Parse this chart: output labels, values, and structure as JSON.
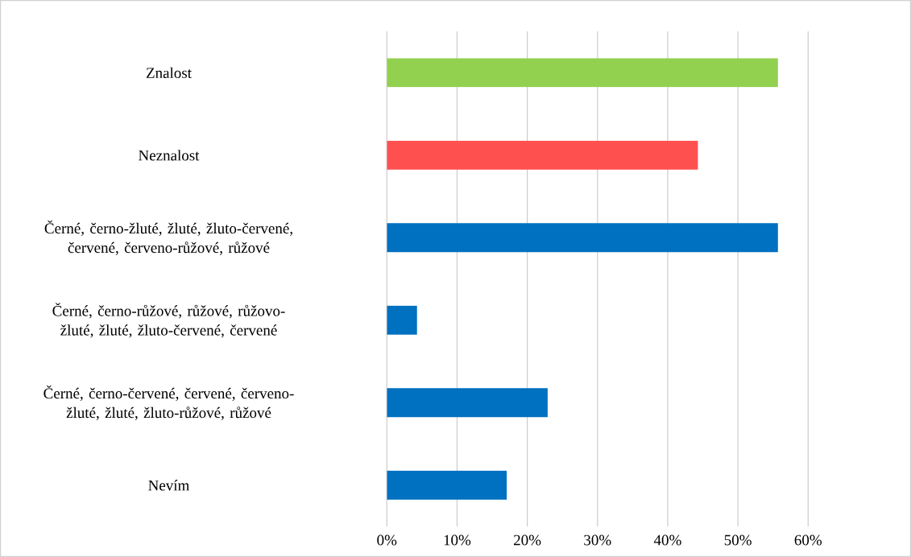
{
  "chart_data": {
    "type": "bar",
    "orientation": "horizontal",
    "categories": [
      "Znalost",
      "Neznalost",
      "Černé, černo-žluté, žluté, žluto-červené, červené, červeno-růžové, růžové",
      "Černé, černo-růžové, růžové, růžovo-žluté, žluté, žluto-červené, červené",
      "Černé, černo-červené, červené, červeno-žluté, žluté, žluto-růžové, růžové",
      "Nevím"
    ],
    "values": [
      55.7,
      44.3,
      55.7,
      4.3,
      22.9,
      17.1
    ],
    "colors": [
      "#92d050",
      "#ff5050",
      "#0070c0",
      "#0070c0",
      "#0070c0",
      "#0070c0"
    ],
    "xlim": [
      0,
      60
    ],
    "xticks": [
      {
        "value": 0,
        "label": "0%"
      },
      {
        "value": 10,
        "label": "10%"
      },
      {
        "value": 20,
        "label": "20%"
      },
      {
        "value": 30,
        "label": "30%"
      },
      {
        "value": 40,
        "label": "40%"
      },
      {
        "value": 50,
        "label": "50%"
      },
      {
        "value": 60,
        "label": "60%"
      }
    ],
    "grid": "x"
  }
}
